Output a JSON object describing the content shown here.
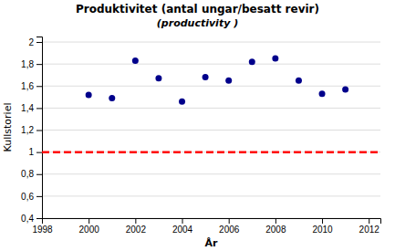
{
  "chart_data": {
    "type": "scatter",
    "title": "Produktivitet (antal ungar/besatt revir)",
    "subtitle": "(productivity )",
    "x_label": "År",
    "y_label": "Kullstoriel",
    "x": [
      2000,
      2001,
      2002,
      2003,
      2004,
      2005,
      2006,
      2007,
      2008,
      2009,
      2010,
      2011
    ],
    "values": [
      1.52,
      1.49,
      1.83,
      1.67,
      1.46,
      1.68,
      1.65,
      1.82,
      1.85,
      1.65,
      1.53,
      1.57
    ],
    "color": "#00008B",
    "hline": {
      "y": 1.0,
      "color": "#FF0000",
      "line_style": "dashed"
    },
    "xlim": [
      1998,
      2012.5
    ],
    "ylim": [
      0.4,
      2.05
    ],
    "xticks": [
      1998,
      2000,
      2002,
      2004,
      2006,
      2008,
      2010,
      2012
    ],
    "yticks": [
      {
        "value": 0.4,
        "label": "0,4"
      },
      {
        "value": 0.6,
        "label": "0,6"
      },
      {
        "value": 0.8,
        "label": "0,8"
      },
      1,
      {
        "value": 1.2,
        "label": "1,2"
      },
      {
        "value": 1.4,
        "label": "1,4"
      },
      {
        "value": 1.6,
        "label": "1,6"
      },
      {
        "value": 1.8,
        "label": "1,8"
      },
      2
    ],
    "grid": true
  }
}
